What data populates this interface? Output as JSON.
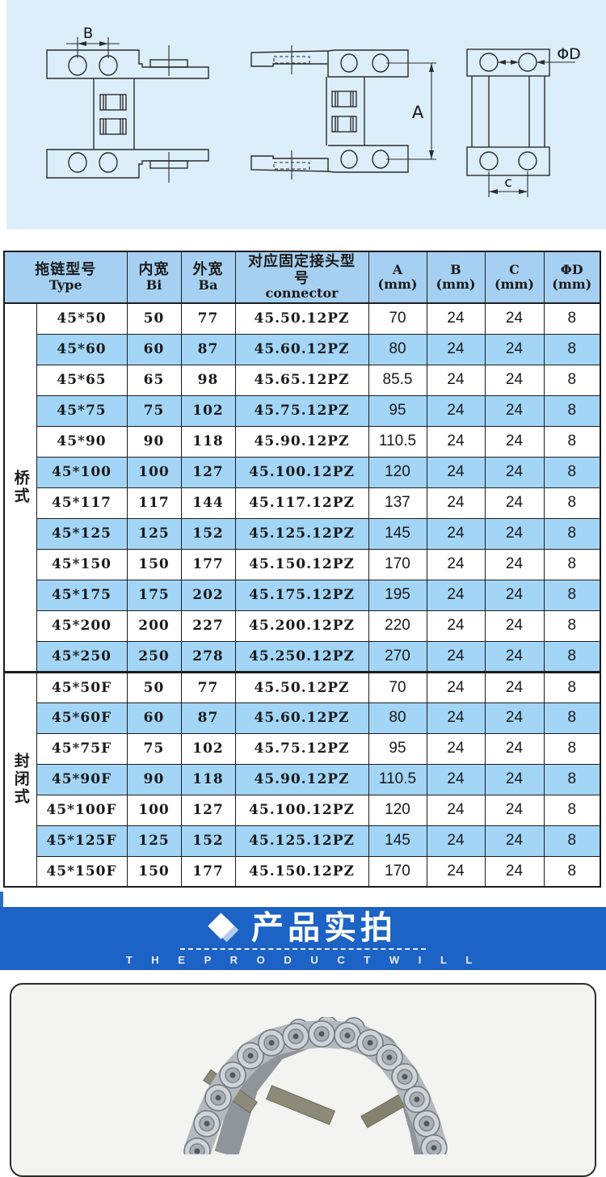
{
  "diagram": {
    "labels": {
      "b": "B",
      "a": "A",
      "phi_d": "ΦD",
      "c": "c"
    }
  },
  "table": {
    "headers": {
      "type_cn": "拖链型号",
      "type_en": "Type",
      "inner_cn": "内宽",
      "inner_en": "Bi",
      "outer_cn": "外宽",
      "outer_en": "Ba",
      "connector_cn": "对应固定接头型号",
      "connector_en": "connector",
      "a": "A",
      "b": "B",
      "c": "C",
      "d": "ΦD",
      "unit": "(mm)"
    },
    "groups": [
      {
        "label": "桥式",
        "rows": [
          [
            "45*50",
            "50",
            "77",
            "45.50.12PZ",
            "70",
            "24",
            "24",
            "8"
          ],
          [
            "45*60",
            "60",
            "87",
            "45.60.12PZ",
            "80",
            "24",
            "24",
            "8"
          ],
          [
            "45*65",
            "65",
            "98",
            "45.65.12PZ",
            "85.5",
            "24",
            "24",
            "8"
          ],
          [
            "45*75",
            "75",
            "102",
            "45.75.12PZ",
            "95",
            "24",
            "24",
            "8"
          ],
          [
            "45*90",
            "90",
            "118",
            "45.90.12PZ",
            "110.5",
            "24",
            "24",
            "8"
          ],
          [
            "45*100",
            "100",
            "127",
            "45.100.12PZ",
            "120",
            "24",
            "24",
            "8"
          ],
          [
            "45*117",
            "117",
            "144",
            "45.117.12PZ",
            "137",
            "24",
            "24",
            "8"
          ],
          [
            "45*125",
            "125",
            "152",
            "45.125.12PZ",
            "145",
            "24",
            "24",
            "8"
          ],
          [
            "45*150",
            "150",
            "177",
            "45.150.12PZ",
            "170",
            "24",
            "24",
            "8"
          ],
          [
            "45*175",
            "175",
            "202",
            "45.175.12PZ",
            "195",
            "24",
            "24",
            "8"
          ],
          [
            "45*200",
            "200",
            "227",
            "45.200.12PZ",
            "220",
            "24",
            "24",
            "8"
          ],
          [
            "45*250",
            "250",
            "278",
            "45.250.12PZ",
            "270",
            "24",
            "24",
            "8"
          ]
        ]
      },
      {
        "label": "封闭式",
        "rows": [
          [
            "45*50F",
            "50",
            "77",
            "45.50.12PZ",
            "70",
            "24",
            "24",
            "8"
          ],
          [
            "45*60F",
            "60",
            "87",
            "45.60.12PZ",
            "80",
            "24",
            "24",
            "8"
          ],
          [
            "45*75F",
            "75",
            "102",
            "45.75.12PZ",
            "95",
            "24",
            "24",
            "8"
          ],
          [
            "45*90F",
            "90",
            "118",
            "45.90.12PZ",
            "110.5",
            "24",
            "24",
            "8"
          ],
          [
            "45*100F",
            "100",
            "127",
            "45.100.12PZ",
            "120",
            "24",
            "24",
            "8"
          ],
          [
            "45*125F",
            "125",
            "152",
            "45.125.12PZ",
            "145",
            "24",
            "24",
            "8"
          ],
          [
            "45*150F",
            "150",
            "177",
            "45.150.12PZ",
            "170",
            "24",
            "24",
            "8"
          ]
        ]
      }
    ],
    "colors": {
      "header_bg": "#a6d0f1",
      "row_alt_bg": "#a3d5f7",
      "border": "#1c1c1c"
    }
  },
  "banner": {
    "title": "产品实拍",
    "subtitle": "T H E   P R O D U C T   W I L L",
    "bg": "#1d62c5"
  }
}
